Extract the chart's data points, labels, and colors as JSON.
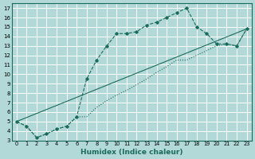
{
  "xlabel": "Humidex (Indice chaleur)",
  "bg_color": "#b2d8d8",
  "line_color": "#1a6b5a",
  "grid_color": "#ffffff",
  "xlim": [
    -0.5,
    23.5
  ],
  "ylim": [
    3,
    17.5
  ],
  "xticks": [
    0,
    1,
    2,
    3,
    4,
    5,
    6,
    7,
    8,
    9,
    10,
    11,
    12,
    13,
    14,
    15,
    16,
    17,
    18,
    19,
    20,
    21,
    22,
    23
  ],
  "yticks": [
    3,
    4,
    5,
    6,
    7,
    8,
    9,
    10,
    11,
    12,
    13,
    14,
    15,
    16,
    17
  ],
  "curve1_x": [
    0,
    1,
    2,
    3,
    4,
    5,
    6,
    7,
    8,
    9,
    10,
    11,
    12,
    13,
    14,
    15,
    16,
    17,
    18,
    19,
    20,
    21,
    22,
    23
  ],
  "curve1_y": [
    5.0,
    4.5,
    3.3,
    3.7,
    4.2,
    4.5,
    5.5,
    9.5,
    11.5,
    13.0,
    14.3,
    14.3,
    14.5,
    15.2,
    15.5,
    16.0,
    16.5,
    17.0,
    15.0,
    14.3,
    13.2,
    13.2,
    13.0,
    14.8
  ],
  "curve2_x": [
    0,
    1,
    2,
    3,
    4,
    5,
    6,
    7,
    8,
    9,
    10,
    11,
    12,
    13,
    14,
    15,
    16,
    17,
    18,
    19,
    20,
    21,
    22,
    23
  ],
  "curve2_y": [
    5.0,
    4.5,
    3.3,
    3.7,
    4.2,
    4.5,
    5.5,
    5.5,
    6.5,
    7.2,
    7.8,
    8.3,
    8.9,
    9.5,
    10.2,
    10.8,
    11.5,
    11.5,
    12.0,
    12.5,
    13.0,
    13.2,
    13.0,
    14.8
  ],
  "curve3_x": [
    0,
    23
  ],
  "curve3_y": [
    5.0,
    14.8
  ]
}
